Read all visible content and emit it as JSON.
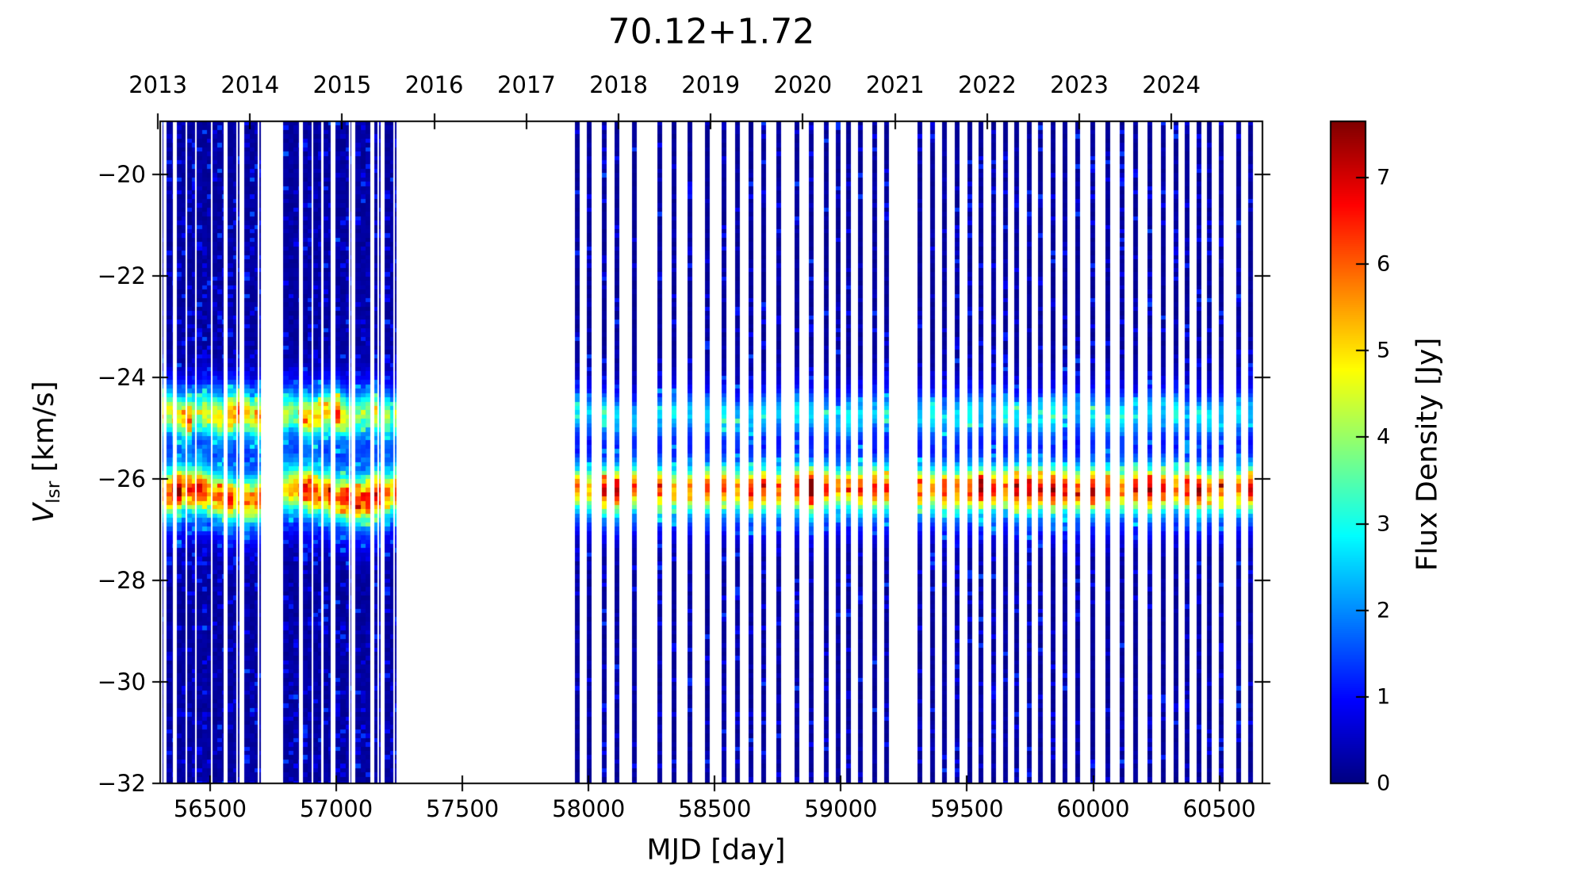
{
  "figure": {
    "title": "70.12+1.72"
  },
  "chart_data": {
    "type": "heatmap",
    "title": "70.12+1.72",
    "xlabel": "MJD [day]",
    "ylabel": {
      "var": "V",
      "sub": "lsr",
      "units": " [km/s]"
    },
    "x_axis": {
      "range": [
        56302,
        60671
      ],
      "ticks": [
        56500,
        57000,
        57500,
        58000,
        58500,
        59000,
        59500,
        60000,
        60500
      ]
    },
    "y_axis": {
      "range": [
        -32,
        -18.95
      ],
      "ticks": [
        -20,
        -22,
        -24,
        -26,
        -28,
        -30,
        -32
      ]
    },
    "top_axis": {
      "unit": "year",
      "ticks": [
        {
          "label": "2013",
          "mjd": 56293
        },
        {
          "label": "2014",
          "mjd": 56658
        },
        {
          "label": "2015",
          "mjd": 57023
        },
        {
          "label": "2016",
          "mjd": 57388
        },
        {
          "label": "2017",
          "mjd": 57754
        },
        {
          "label": "2018",
          "mjd": 58119
        },
        {
          "label": "2019",
          "mjd": 58484
        },
        {
          "label": "2020",
          "mjd": 58849
        },
        {
          "label": "2021",
          "mjd": 59215
        },
        {
          "label": "2022",
          "mjd": 59580
        },
        {
          "label": "2023",
          "mjd": 59945
        },
        {
          "label": "2024",
          "mjd": 60310
        }
      ]
    },
    "colorbar": {
      "label": "Flux Density [Jy]",
      "vmin": 0,
      "vmax": 7.65,
      "ticks": [
        0,
        1,
        2,
        3,
        4,
        5,
        6,
        7
      ],
      "colormap": "jet"
    },
    "features": {
      "band1_center_kms": -24.7,
      "band1_sigma_kms": 0.27,
      "band2_center_kms": -26.15,
      "band2_sigma_kms": 0.29,
      "interband_level_jy": 0.9,
      "background_noise_jy": 0.2,
      "strip_width_days": 19,
      "peak_epoch": {
        "mjd": 58883,
        "flux_jy": 7.6
      }
    },
    "observations": {
      "era_dense": {
        "mjd_segments": [
          [
            56290,
            56312
          ],
          [
            56328,
            56353
          ],
          [
            56368,
            56554
          ],
          [
            56570,
            56620
          ],
          [
            56636,
            56705
          ],
          [
            56790,
            56852
          ],
          [
            56868,
            56978
          ],
          [
            56997,
            57060
          ],
          [
            57076,
            57135
          ],
          [
            57151,
            57176
          ],
          [
            57192,
            57239
          ]
        ],
        "column_days": 20,
        "band1_points": [
          [
            56290,
            3.4
          ],
          [
            56400,
            4.3
          ],
          [
            56500,
            3.2
          ],
          [
            56600,
            4.5
          ],
          [
            56700,
            3.9
          ],
          [
            56800,
            3.0
          ],
          [
            56900,
            4.1
          ],
          [
            57000,
            4.6
          ],
          [
            57100,
            3.4
          ],
          [
            57240,
            3.0
          ]
        ],
        "band2_points": [
          [
            56290,
            4.8
          ],
          [
            56350,
            5.9
          ],
          [
            56450,
            5.3
          ],
          [
            56550,
            4.9
          ],
          [
            56650,
            5.1
          ],
          [
            56790,
            4.7
          ],
          [
            56900,
            5.5
          ],
          [
            57000,
            5.2
          ],
          [
            57100,
            5.7
          ],
          [
            57240,
            4.7
          ]
        ]
      },
      "era_monitor_1": {
        "epochs": [
          57956,
          58003,
          58062,
          58113,
          58182,
          58282,
          58339,
          58402,
          58471,
          58537,
          58590,
          58644,
          58694,
          58754,
          58826,
          58883,
          58942,
          58989,
          59030,
          59077,
          59134,
          59181
        ],
        "band1": [
          2.2,
          1.9,
          2.4,
          2.1,
          1.8,
          2.0,
          2.3,
          1.9,
          2.1,
          2.4,
          1.8,
          2.0,
          2.2,
          1.9,
          2.5,
          2.2,
          2.0,
          1.8,
          2.3,
          2.1,
          1.9,
          2.2
        ],
        "band2": [
          5.0,
          4.6,
          6.2,
          6.5,
          5.5,
          5.6,
          4.8,
          5.2,
          5.6,
          5.4,
          4.9,
          6.0,
          6.1,
          5.3,
          5.7,
          7.55,
          5.6,
          4.7,
          5.2,
          5.8,
          6.0,
          5.5
        ]
      },
      "era_monitor_2": {
        "epochs": [
          59313,
          59363,
          59411,
          59461,
          59511,
          59555,
          59605,
          59652,
          59696,
          59747,
          59791,
          59841,
          59888,
          59938,
          59998,
          60058,
          60114,
          60168,
          60224,
          60278,
          60328,
          60372,
          60419,
          60460,
          60507,
          60576,
          60624
        ],
        "band1": [
          2.0,
          2.3,
          1.8,
          2.2,
          2.5,
          2.0,
          1.8,
          2.4,
          2.1,
          1.9,
          2.2,
          2.6,
          2.0,
          1.8,
          2.3,
          2.1,
          2.4,
          1.9,
          2.2,
          2.0,
          2.5,
          1.8,
          2.1,
          2.3,
          1.9,
          2.2,
          2.0
        ],
        "band2": [
          5.2,
          5.0,
          6.0,
          5.4,
          5.6,
          6.6,
          5.7,
          5.2,
          6.7,
          6.7,
          6.2,
          6.8,
          6.0,
          5.6,
          6.2,
          5.8,
          5.3,
          6.1,
          6.6,
          5.7,
          5.2,
          5.9,
          6.3,
          5.0,
          5.5,
          5.2,
          6.0
        ]
      }
    }
  }
}
